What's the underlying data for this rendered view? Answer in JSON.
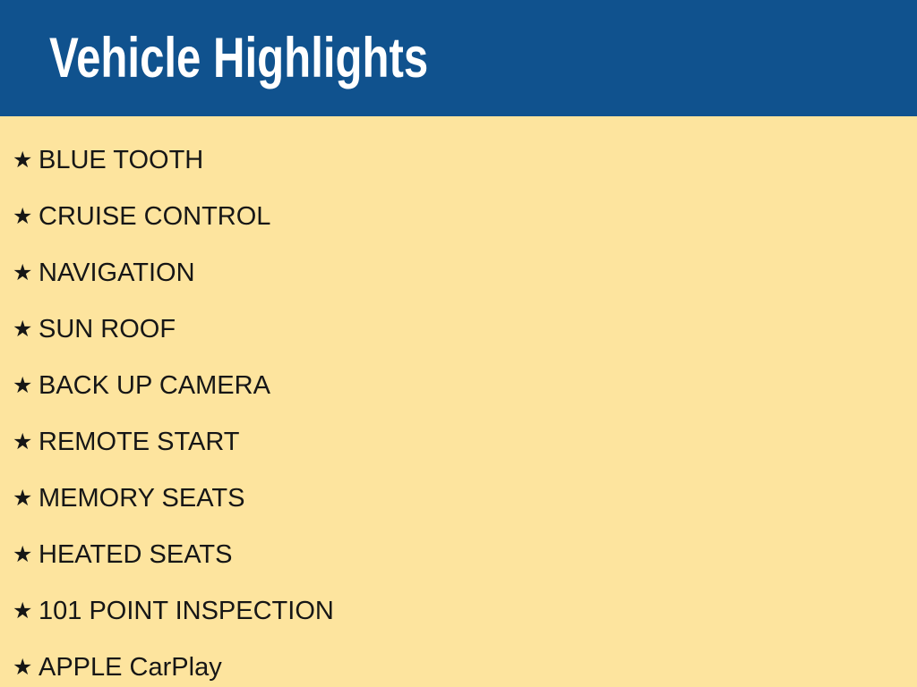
{
  "slide": {
    "title": "Vehicle Highlights",
    "bullet_glyph": "★",
    "items": [
      "BLUE TOOTH",
      "CRUISE CONTROL",
      "NAVIGATION",
      "SUN ROOF",
      "BACK UP CAMERA",
      "REMOTE START",
      "MEMORY SEATS",
      "HEATED SEATS",
      "101 POINT INSPECTION",
      "APPLE CarPlay"
    ],
    "colors": {
      "header_bg": "#10528e",
      "body_bg": "#fde49e",
      "title_text": "#ffffff",
      "item_text": "#161616"
    }
  }
}
